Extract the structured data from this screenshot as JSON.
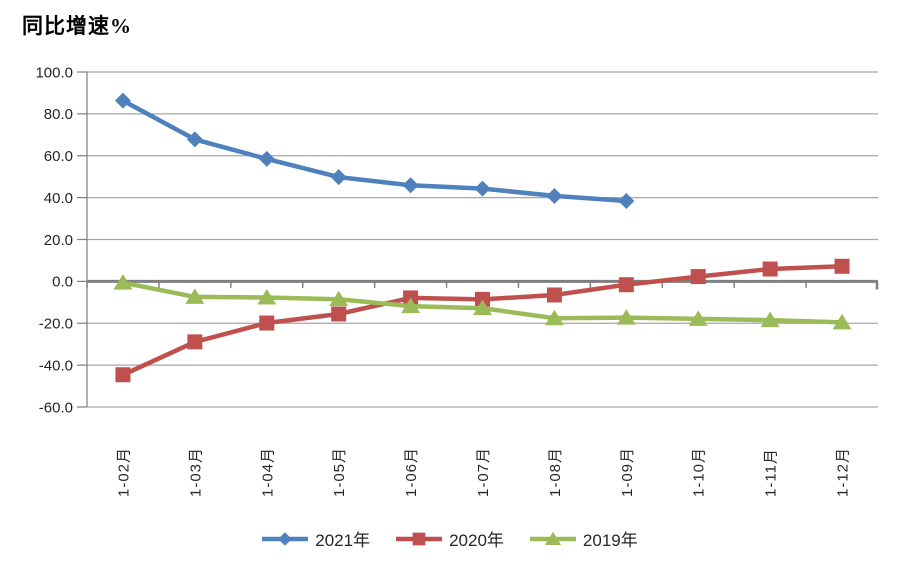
{
  "chart_data": {
    "type": "line",
    "title": "同比增速%",
    "categories": [
      "1-02月",
      "1-03月",
      "1-04月",
      "1-05月",
      "1-06月",
      "1-07月",
      "1-08月",
      "1-09月",
      "1-10月",
      "1-11月",
      "1-12月"
    ],
    "series": [
      {
        "name": "2021年",
        "marker": "diamond",
        "color": "#4F81BD",
        "values": [
          86.3,
          67.8,
          58.5,
          49.8,
          45.9,
          44.3,
          40.8,
          38.4,
          null,
          null,
          null
        ]
      },
      {
        "name": "2020年",
        "marker": "square",
        "color": "#C0504D",
        "values": [
          -44.6,
          -28.9,
          -19.9,
          -15.6,
          -7.9,
          -8.6,
          -6.5,
          -1.6,
          2.3,
          5.9,
          7.2
        ]
      },
      {
        "name": "2019年",
        "marker": "triangle",
        "color": "#9BBB59",
        "values": [
          -0.6,
          -7.4,
          -7.7,
          -8.5,
          -11.8,
          -12.8,
          -17.6,
          -17.3,
          -17.9,
          -18.5,
          -19.6
        ]
      }
    ],
    "ylim": [
      -60,
      100
    ],
    "ytick_step": 20,
    "ytick_labels": [
      "100.0",
      "80.0",
      "60.0",
      "40.0",
      "20.0",
      "0.0",
      "-20.0",
      "-40.0",
      "-60.0"
    ],
    "grid": true,
    "legend_position": "bottom",
    "axis_color": "#7F7F7F",
    "grid_color": "#A6A6A6",
    "text_color": "#262626"
  }
}
